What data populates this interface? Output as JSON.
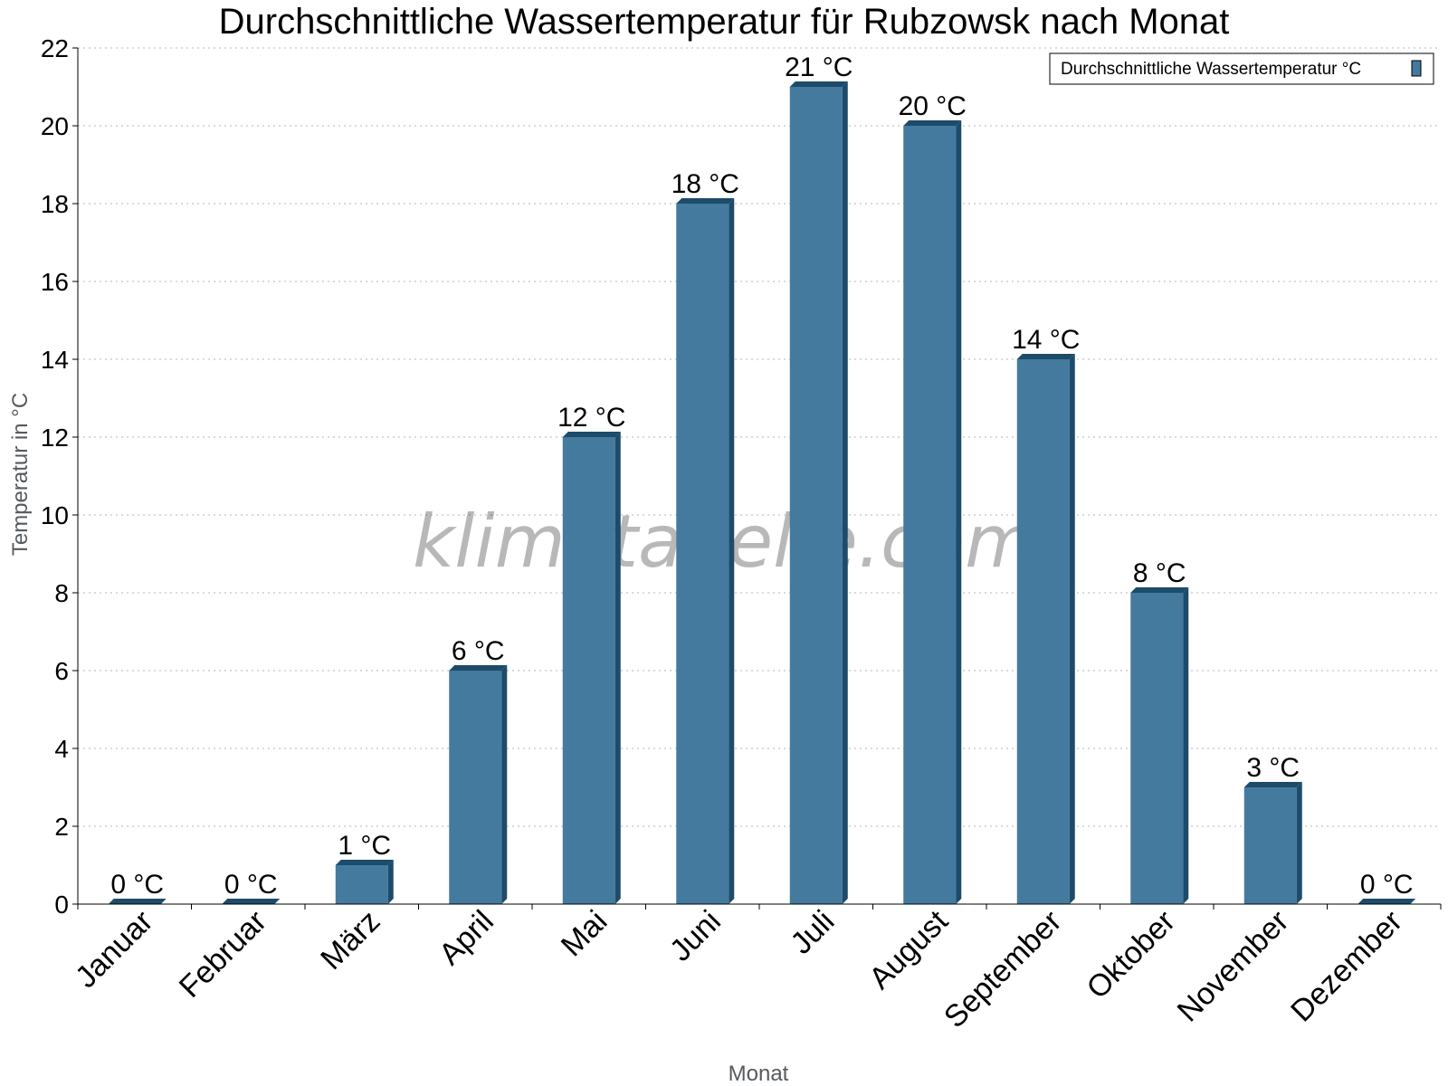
{
  "chart_data": {
    "type": "bar",
    "title": "Durchschnittliche Wassertemperatur für Rubzowsk nach Monat",
    "xlabel": "Monat",
    "ylabel": "Temperatur in °C",
    "categories": [
      "Januar",
      "Februar",
      "März",
      "April",
      "Mai",
      "Juni",
      "Juli",
      "August",
      "September",
      "Oktober",
      "November",
      "Dezember"
    ],
    "series": [
      {
        "name": "Durchschnittliche Wassertemperatur °C",
        "values": [
          0,
          0,
          1,
          6,
          12,
          18,
          21,
          20,
          14,
          8,
          3,
          0
        ],
        "labels": [
          "0 °C",
          "0 °C",
          "1 °C",
          "6 °C",
          "12 °C",
          "18 °C",
          "21 °C",
          "20 °C",
          "14 °C",
          "8 °C",
          "3 °C",
          "0 °C"
        ]
      }
    ],
    "ylim": [
      0,
      22
    ],
    "yticks": [
      0,
      2,
      4,
      6,
      8,
      10,
      12,
      14,
      16,
      18,
      20,
      22
    ],
    "grid": true,
    "legend_position": "top-right",
    "bar_color": "#447a9e",
    "bar_shade_color": "#1d4b6a"
  },
  "watermark": "klimatabelle.com"
}
